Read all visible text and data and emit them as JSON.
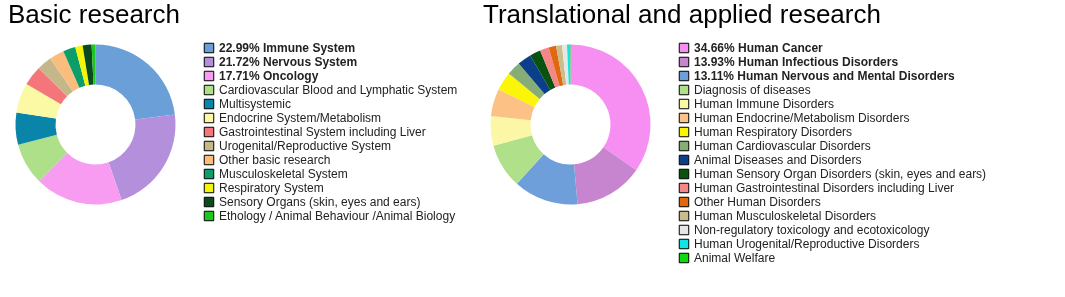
{
  "chart_data": [
    {
      "type": "donut",
      "title": "Basic research",
      "legend": "right",
      "categories": [
        "Immune System",
        "Nervous System",
        "Oncology",
        "Cardiovascular Blood and Lymphatic System",
        "Multisystemic",
        "Endocrine System/Metabolism",
        "Gastrointestinal System including Liver",
        "Urogenital/Reproductive System",
        "Other basic research",
        "Musculoskeletal System",
        "Respiratory System",
        "Sensory Organs (skin, eyes and ears)",
        "Ethology / Animal Behaviour /Animal Biology"
      ],
      "values": [
        22.99,
        21.72,
        17.71,
        8.5,
        6.5,
        6,
        4,
        3,
        3,
        2.5,
        1.5,
        1.8,
        0.78
      ],
      "value_labels": [
        "22.99%",
        "21.72%",
        "17.71%",
        null,
        null,
        null,
        null,
        null,
        null,
        null,
        null,
        null,
        null
      ],
      "colors": [
        "#6a9fd8",
        "#b48fdc",
        "#f79cf0",
        "#aee08a",
        "#0a84a8",
        "#fbf9a4",
        "#f4767a",
        "#c4b88a",
        "#fbbd7e",
        "#0b9e6a",
        "#f5f50a",
        "#0b4a1e",
        "#1ec61e"
      ]
    },
    {
      "type": "donut",
      "title": "Translational and applied research",
      "legend": "right",
      "categories": [
        "Human Cancer",
        "Human Infectious Disorders",
        "Human Nervous and Mental Disorders",
        "Diagnosis of diseases",
        "Human Immune Disorders",
        "Human Endocrine/Metabolism Disorders",
        "Human Respiratory Disorders",
        "Human Cardiovascular Disorders",
        "Animal Diseases and Disorders",
        "Human Sensory Organ Disorders (skin, eyes and ears)",
        "Human Gastrointestinal Disorders including Liver",
        "Other Human Disorders",
        "Human Musculoskeletal Disorders",
        "Non-regulatory toxicology and ecotoxicology",
        "Human Urogenital/Reproductive Disorders",
        "Animal Welfare"
      ],
      "values": [
        34.66,
        13.93,
        13.11,
        9,
        6,
        5.5,
        3.8,
        2.8,
        2.8,
        2.2,
        1.8,
        1.5,
        1.2,
        1,
        0.6,
        0.1
      ],
      "value_labels": [
        "34.66%",
        "13.93%",
        "13.11%",
        null,
        null,
        null,
        null,
        null,
        null,
        null,
        null,
        null,
        null,
        null,
        null,
        null
      ],
      "colors": [
        "#f78ff2",
        "#c885cf",
        "#6f9fda",
        "#b0e08a",
        "#fbf7a6",
        "#fcc184",
        "#fbf507",
        "#86ad76",
        "#0b3f8a",
        "#0a520f",
        "#f58787",
        "#e2680f",
        "#c9bd8e",
        "#e6e6e6",
        "#12e4e4",
        "#12d812"
      ]
    }
  ]
}
